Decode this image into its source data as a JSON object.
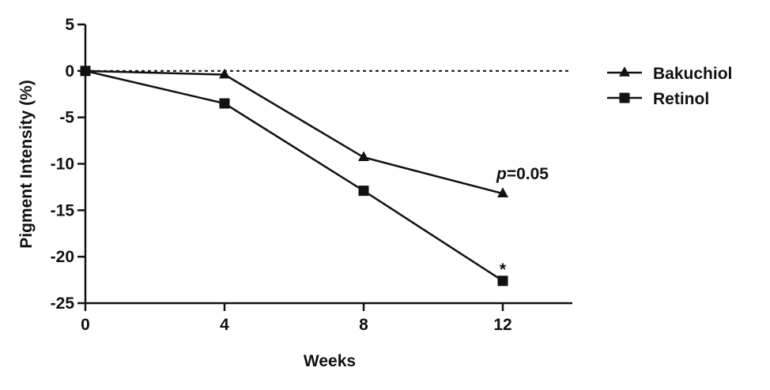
{
  "chart_data": {
    "type": "line",
    "title": "",
    "xlabel": "Weeks",
    "ylabel": "Pigment Intensity (%)",
    "xlim": [
      0,
      14
    ],
    "ylim": [
      -25,
      5
    ],
    "xticks": [
      0,
      4,
      8,
      12
    ],
    "yticks": [
      5,
      0,
      -5,
      -10,
      -15,
      -20,
      -25
    ],
    "xtick_labels": [
      "0",
      "4",
      "8",
      "12"
    ],
    "ytick_labels": [
      "5",
      "0",
      "-5",
      "-10",
      "-15",
      "-20",
      "-25"
    ],
    "reference_line": {
      "y": 0,
      "style": "dotted"
    },
    "x": [
      0,
      4,
      8,
      12
    ],
    "series": [
      {
        "name": "Bakuchiol",
        "marker": "triangle",
        "values": [
          0,
          -0.4,
          -9.3,
          -13.2
        ]
      },
      {
        "name": "Retinol",
        "marker": "square",
        "values": [
          0,
          -3.5,
          -12.9,
          -22.6
        ]
      }
    ],
    "annotations": [
      {
        "series": "Bakuchiol",
        "x": 12,
        "prefix": "p",
        "text": "=0.05"
      },
      {
        "series": "Retinol",
        "x": 12,
        "text": "*"
      }
    ],
    "legend_position": "top-right",
    "grid": false
  }
}
